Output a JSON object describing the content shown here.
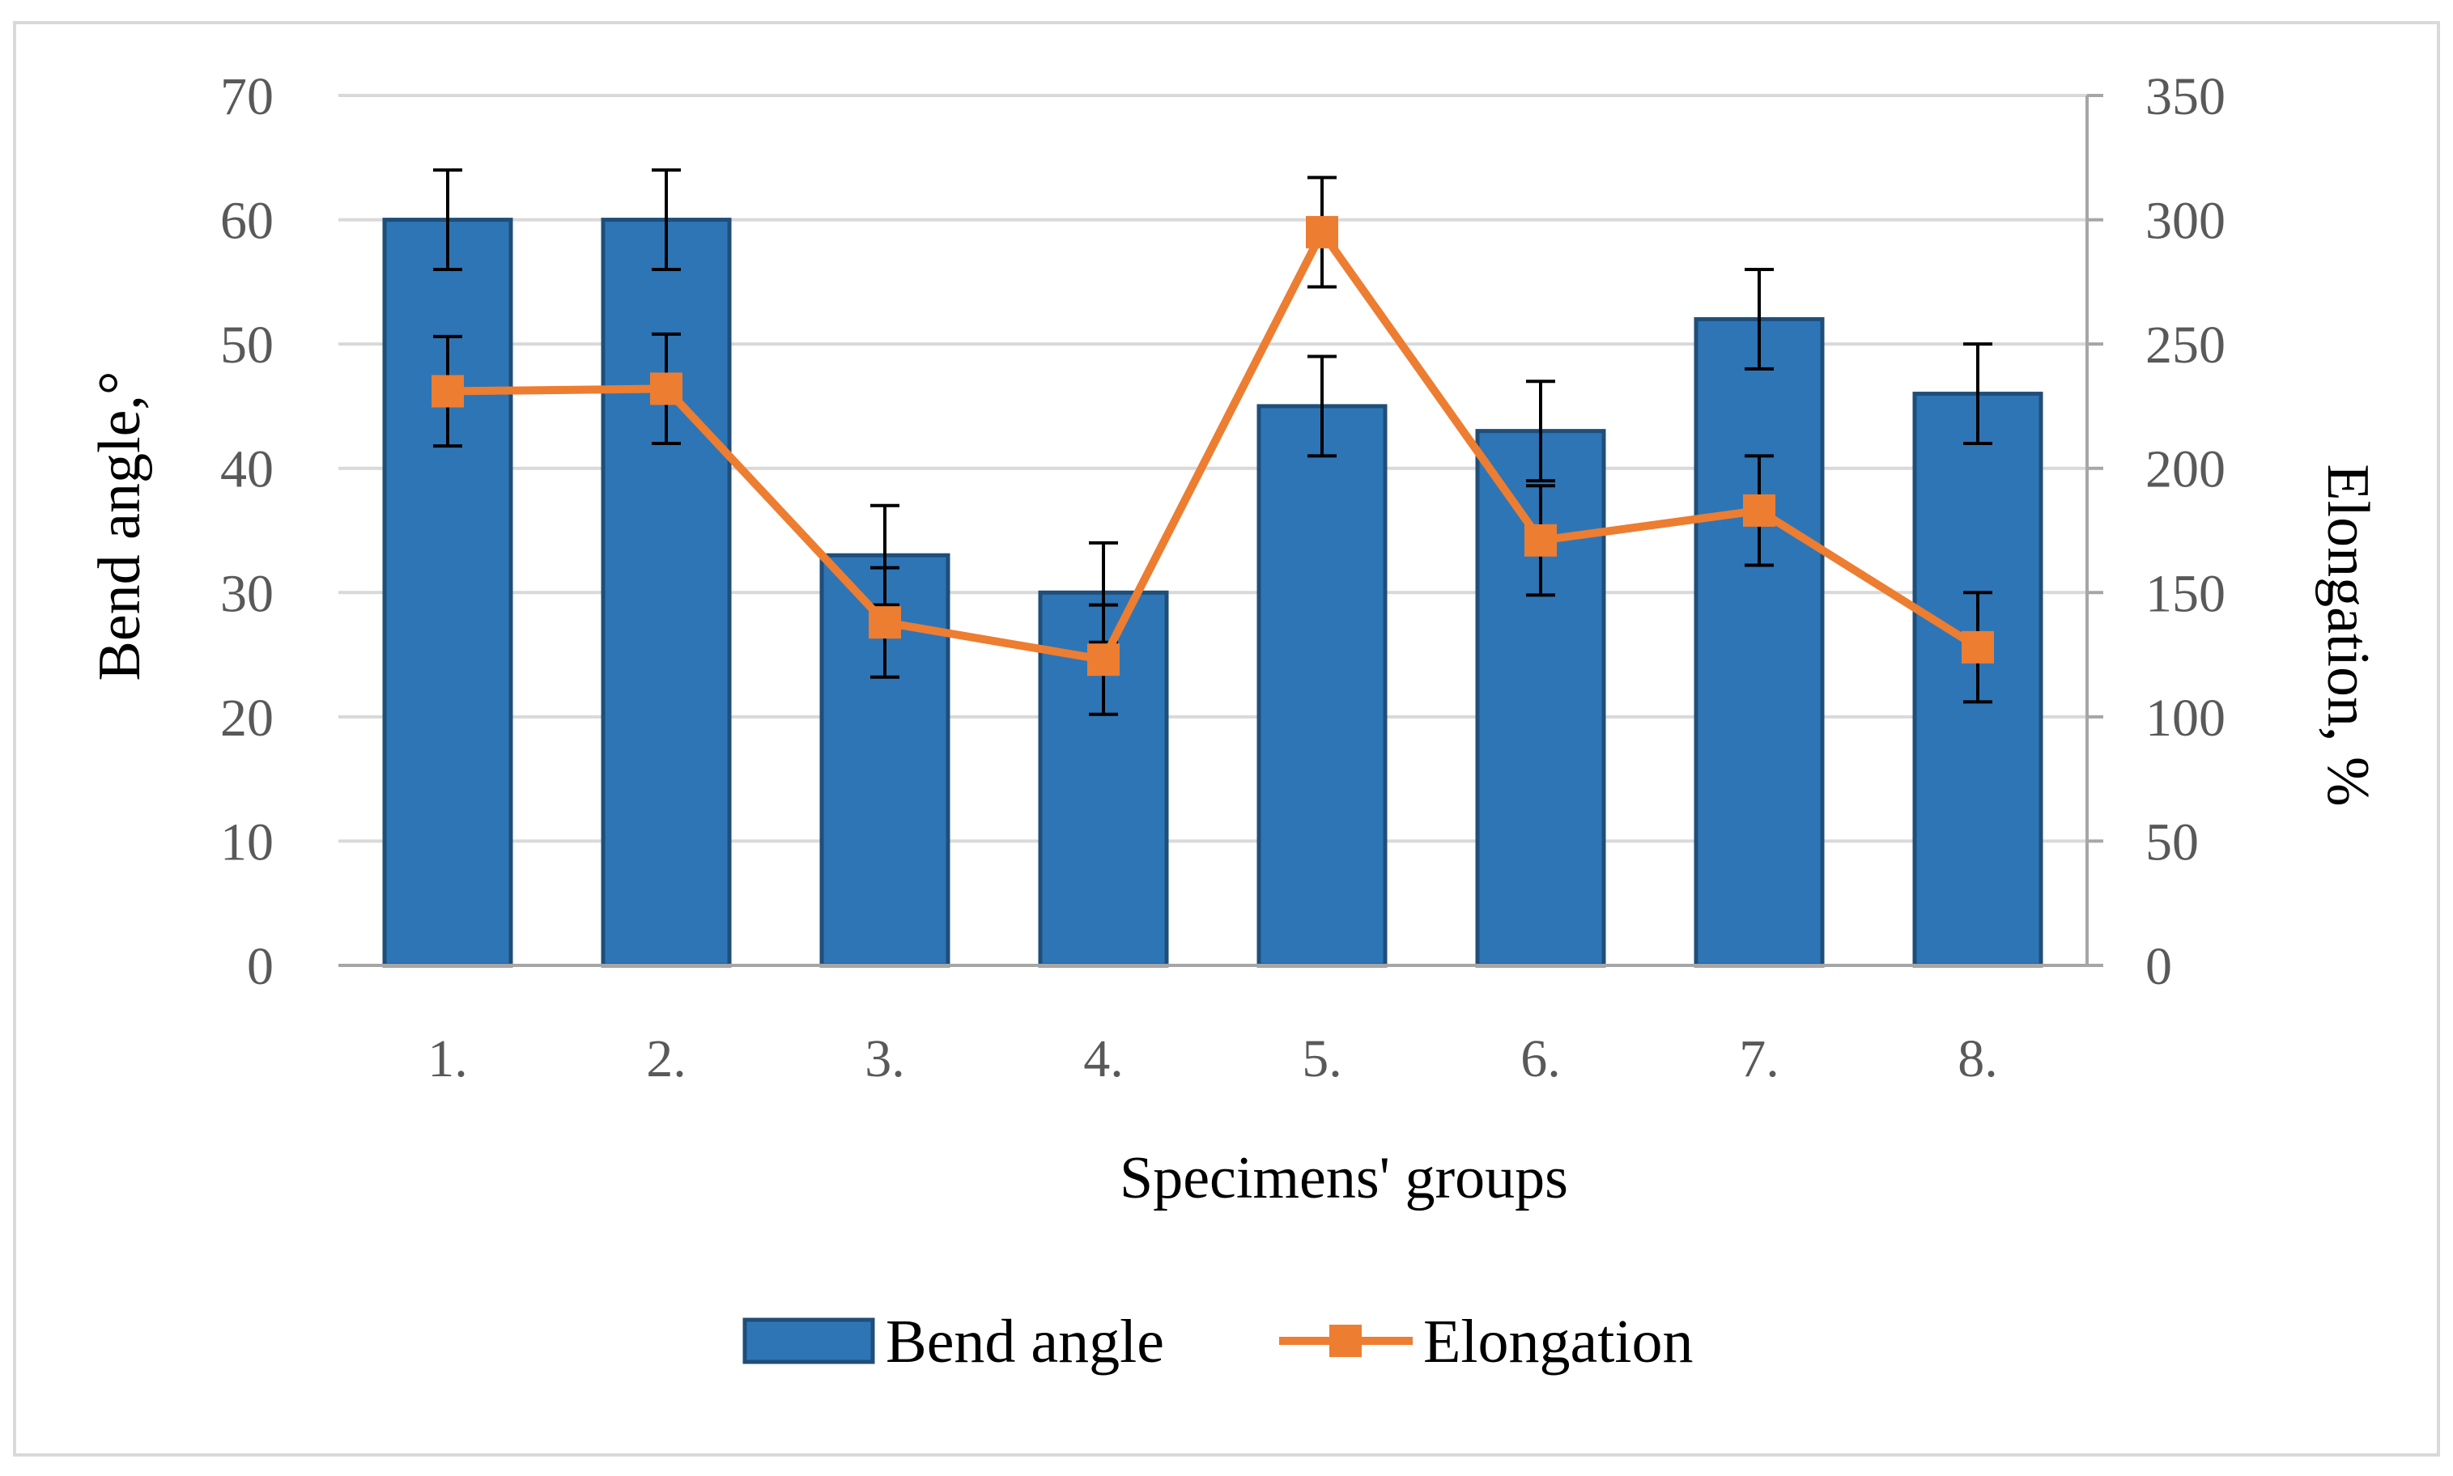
{
  "chart_data": {
    "type": "bar+line",
    "categories": [
      "1.",
      "2.",
      "3.",
      "4.",
      "5.",
      "6.",
      "7.",
      "8."
    ],
    "xlabel": "Specimens' groups",
    "series": [
      {
        "name": "Bend angle",
        "type": "bar",
        "axis": "left",
        "values": [
          60,
          60,
          33,
          30,
          45,
          43,
          52,
          46
        ],
        "error": [
          4,
          4,
          4,
          4,
          4,
          4,
          4,
          4
        ],
        "color": "#2e75b6"
      },
      {
        "name": "Elongation",
        "type": "line",
        "axis": "right",
        "values": [
          231,
          232,
          138,
          123,
          295,
          171,
          183,
          128
        ],
        "error": [
          22,
          22,
          22,
          22,
          22,
          22,
          22,
          22
        ],
        "color": "#ed7d31"
      }
    ],
    "y_left": {
      "label": "Bend angle,°",
      "ylim": [
        0,
        70
      ],
      "ticks": [
        0,
        10,
        20,
        30,
        40,
        50,
        60,
        70
      ]
    },
    "y_right": {
      "label": "Elongation, %",
      "ylim": [
        0,
        350
      ],
      "ticks": [
        0,
        50,
        100,
        150,
        200,
        250,
        300,
        350
      ]
    },
    "legend": {
      "position": "bottom",
      "entries": [
        "Bend angle",
        "Elongation"
      ]
    },
    "grid": true
  }
}
